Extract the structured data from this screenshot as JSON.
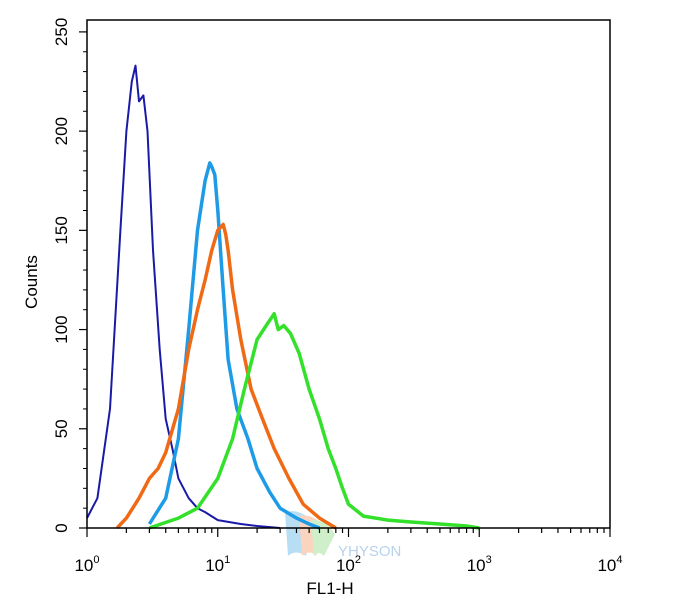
{
  "chart_data": {
    "type": "histogram",
    "xlabel": "FL1-H",
    "ylabel": "Counts",
    "x_scale": "log",
    "xlim": [
      1,
      10000
    ],
    "ylim": [
      0,
      256
    ],
    "x_ticks": [
      {
        "base": "10",
        "exp": "0"
      },
      {
        "base": "10",
        "exp": "1"
      },
      {
        "base": "10",
        "exp": "2"
      },
      {
        "base": "10",
        "exp": "3"
      },
      {
        "base": "10",
        "exp": "4"
      }
    ],
    "y_ticks": [
      "0",
      "50",
      "100",
      "150",
      "200",
      "250"
    ],
    "grid": false,
    "watermark_text": [
      "YHYSON"
    ],
    "series": [
      {
        "color": "#1a1aa8",
        "x": [
          1.0,
          1.2,
          1.5,
          1.8,
          2.0,
          2.2,
          2.35,
          2.5,
          2.7,
          2.9,
          3.2,
          3.6,
          4.0,
          4.5,
          5.0,
          6.0,
          7.0,
          8.0,
          10.0,
          15.0,
          20.0,
          30.0
        ],
        "y": [
          5,
          15,
          60,
          150,
          200,
          225,
          233,
          215,
          218,
          200,
          140,
          90,
          55,
          40,
          25,
          15,
          10,
          8,
          4,
          2,
          1,
          0
        ]
      },
      {
        "color": "#1e9be6",
        "x": [
          3.0,
          4.0,
          5.0,
          6.0,
          7.0,
          8.0,
          8.7,
          9.0,
          9.5,
          10.0,
          11.0,
          12.0,
          14.0,
          17.0,
          20.0,
          25.0,
          30.0,
          40.0,
          50.0,
          60.0
        ],
        "y": [
          2,
          15,
          45,
          100,
          150,
          175,
          184,
          182,
          178,
          160,
          120,
          85,
          60,
          45,
          30,
          18,
          10,
          5,
          2,
          0
        ]
      },
      {
        "color": "#f06a16",
        "x": [
          1.7,
          2.0,
          2.5,
          3.0,
          3.5,
          4.0,
          5.0,
          6.0,
          7.0,
          8.0,
          9.0,
          10.0,
          11.0,
          11.5,
          12.0,
          13.0,
          15.0,
          18.0,
          22.0,
          27.0,
          35.0,
          45.0,
          60.0,
          80.0
        ],
        "y": [
          0,
          5,
          15,
          25,
          30,
          38,
          60,
          90,
          110,
          125,
          140,
          150,
          153,
          148,
          140,
          120,
          95,
          70,
          55,
          40,
          25,
          12,
          5,
          0
        ]
      },
      {
        "color": "#33e02a",
        "x": [
          3.0,
          5.0,
          7.0,
          10.0,
          13.0,
          16.0,
          20.0,
          24.0,
          27.0,
          29.0,
          32.0,
          36.0,
          42.0,
          50.0,
          60.0,
          70.0,
          80.0,
          90.0,
          100.0,
          130.0,
          200.0,
          300.0,
          500.0,
          800.0,
          1000.0
        ],
        "y": [
          0,
          5,
          10,
          25,
          45,
          70,
          95,
          103,
          108,
          100,
          102,
          98,
          88,
          70,
          55,
          40,
          30,
          20,
          12,
          6,
          4,
          3,
          2,
          1,
          0
        ]
      }
    ]
  }
}
